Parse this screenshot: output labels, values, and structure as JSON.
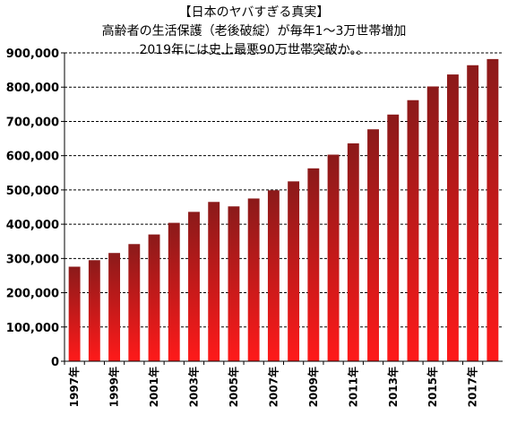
{
  "chart_data": {
    "type": "bar",
    "title_lines": [
      "【日本のヤバすぎる真実】",
      "高齢者の生活保護（老後破綻）が毎年1～3万世帯増加",
      "2019年には史上最悪90万世帯突破か。。"
    ],
    "x": [
      "1997",
      "1998",
      "1999",
      "2000",
      "2001",
      "2002",
      "2003",
      "2004",
      "2005",
      "2006",
      "2007",
      "2008",
      "2009",
      "2010",
      "2011",
      "2012",
      "2013",
      "2014",
      "2015",
      "2016",
      "2017",
      "2018"
    ],
    "x_tick_labels": [
      "1997年",
      "",
      "1999年",
      "",
      "2001年",
      "",
      "2003年",
      "",
      "2005年",
      "",
      "2007年",
      "",
      "2009年",
      "",
      "2011年",
      "",
      "2013年",
      "",
      "2015年",
      "",
      "2017年",
      ""
    ],
    "values": [
      276000,
      295000,
      316000,
      342000,
      370000,
      404000,
      436000,
      465000,
      452000,
      475000,
      499000,
      525000,
      563000,
      603000,
      636000,
      677000,
      720000,
      762000,
      802000,
      837000,
      864000,
      882000
    ],
    "yticks": [
      0,
      100000,
      200000,
      300000,
      400000,
      500000,
      600000,
      700000,
      800000,
      900000
    ],
    "ytick_labels": [
      "0",
      "100,000",
      "200,000",
      "300,000",
      "400,000",
      "500,000",
      "600,000",
      "700,000",
      "800,000",
      "900,000"
    ],
    "ylim": [
      0,
      900000
    ],
    "grid": true,
    "legend": "none",
    "colors": {
      "bar_top": "#8b1a1a",
      "bar_bottom": "#ff1a1a",
      "grid": "#000000",
      "axis": "#000000"
    }
  }
}
